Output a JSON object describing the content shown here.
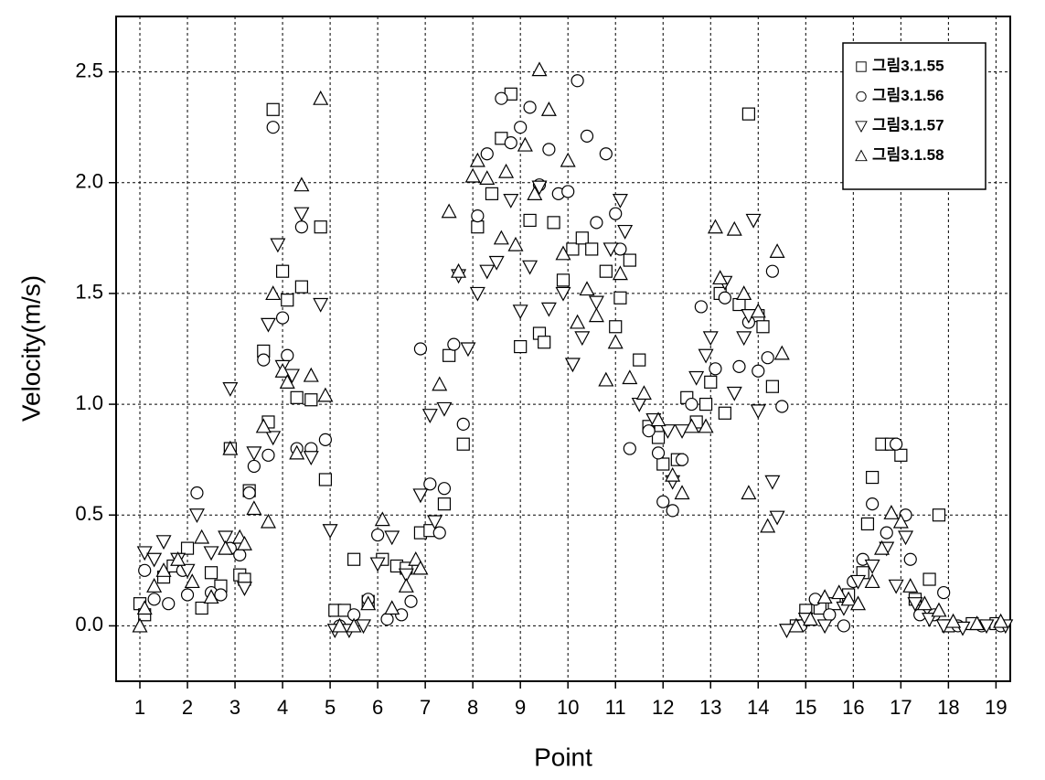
{
  "chart_data": {
    "type": "scatter",
    "x_label": "Point",
    "y_label": "Velocity(m/s)",
    "xlim": [
      0.5,
      19.3
    ],
    "ylim": [
      -0.25,
      2.75
    ],
    "xticks": [
      1,
      2,
      3,
      4,
      5,
      6,
      7,
      8,
      9,
      10,
      11,
      12,
      13,
      14,
      15,
      16,
      17,
      18,
      19
    ],
    "yticks": [
      {
        "value": 0,
        "label": "0.0"
      },
      0.5,
      {
        "value": 1,
        "label": "1.0"
      },
      1.5,
      {
        "value": 2,
        "label": "2.0"
      },
      2.5
    ],
    "grid": true,
    "legend": "upper right",
    "series": [
      {
        "name": "그림3.1.55",
        "marker": "square",
        "color": "#000000",
        "x": [
          1.0,
          1.1,
          1.5,
          1.7,
          2.0,
          2.3,
          2.5,
          2.7,
          2.9,
          3.1,
          3.2,
          3.3,
          3.6,
          3.7,
          3.8,
          4.0,
          4.1,
          4.3,
          4.4,
          4.6,
          4.8,
          4.9,
          5.1,
          5.3,
          5.5,
          5.8,
          6.1,
          6.4,
          6.6,
          6.9,
          7.1,
          7.4,
          7.5,
          7.8,
          8.1,
          8.4,
          8.6,
          8.8,
          9.0,
          9.2,
          9.4,
          9.5,
          9.7,
          9.9,
          10.1,
          10.3,
          10.5,
          10.8,
          11.0,
          11.1,
          11.3,
          11.5,
          11.7,
          11.9,
          12.0,
          12.3,
          12.5,
          12.7,
          12.9,
          13.0,
          13.2,
          13.3,
          13.6,
          13.8,
          14.0,
          14.1,
          14.3,
          14.8,
          15.0,
          15.3,
          15.6,
          15.9,
          16.2,
          16.3,
          16.4,
          16.6,
          16.8,
          17.0,
          17.3,
          17.6,
          17.8,
          18.0,
          18.5,
          19.0
        ],
        "values": [
          0.1,
          0.05,
          0.22,
          0.27,
          0.35,
          0.08,
          0.24,
          0.18,
          0.8,
          0.23,
          0.21,
          0.61,
          1.24,
          0.92,
          2.33,
          1.6,
          1.47,
          1.03,
          1.53,
          1.02,
          1.8,
          0.66,
          0.07,
          0.07,
          0.3,
          0.11,
          0.3,
          0.27,
          0.26,
          0.42,
          0.43,
          0.55,
          1.22,
          0.82,
          1.8,
          1.95,
          2.2,
          2.4,
          1.26,
          1.83,
          1.32,
          1.28,
          1.82,
          1.56,
          1.7,
          1.75,
          1.7,
          1.6,
          1.35,
          1.48,
          1.65,
          1.2,
          0.9,
          0.85,
          0.73,
          0.75,
          1.03,
          0.92,
          1.0,
          1.1,
          1.5,
          0.96,
          1.45,
          2.31,
          1.4,
          1.35,
          1.08,
          0.0,
          0.07,
          0.08,
          0.1,
          0.14,
          0.24,
          0.46,
          0.67,
          0.82,
          0.82,
          0.77,
          0.12,
          0.21,
          0.5,
          0.0,
          0.01,
          0.01
        ]
      },
      {
        "name": "그림3.1.56",
        "marker": "circle",
        "color": "#000000",
        "x": [
          1.1,
          1.3,
          1.6,
          1.9,
          2.0,
          2.2,
          2.5,
          2.7,
          2.9,
          3.1,
          3.3,
          3.4,
          3.6,
          3.7,
          3.8,
          4.0,
          4.1,
          4.3,
          4.4,
          4.6,
          4.9,
          5.2,
          5.5,
          5.8,
          6.0,
          6.2,
          6.5,
          6.7,
          6.9,
          7.1,
          7.3,
          7.4,
          7.6,
          7.8,
          8.1,
          8.3,
          8.6,
          8.8,
          9.0,
          9.2,
          9.4,
          9.6,
          9.8,
          10.0,
          10.2,
          10.4,
          10.6,
          10.8,
          11.0,
          11.1,
          11.3,
          11.7,
          11.9,
          12.0,
          12.2,
          12.4,
          12.6,
          12.8,
          13.1,
          13.3,
          13.6,
          13.8,
          14.0,
          14.2,
          14.3,
          14.5,
          14.9,
          15.2,
          15.5,
          15.8,
          16.0,
          16.2,
          16.4,
          16.7,
          16.9,
          17.1,
          17.2,
          17.4,
          17.7,
          17.9,
          18.2,
          18.7,
          19.1
        ],
        "values": [
          0.25,
          0.12,
          0.1,
          0.25,
          0.14,
          0.6,
          0.15,
          0.14,
          0.35,
          0.32,
          0.6,
          0.72,
          1.2,
          0.77,
          2.25,
          1.39,
          1.22,
          0.8,
          1.8,
          0.8,
          0.84,
          0.0,
          0.05,
          0.12,
          0.41,
          0.03,
          0.05,
          0.11,
          1.25,
          0.64,
          0.42,
          0.62,
          1.27,
          0.91,
          1.85,
          2.13,
          2.38,
          2.18,
          2.25,
          2.34,
          1.99,
          2.15,
          1.95,
          1.96,
          2.46,
          2.21,
          1.82,
          2.13,
          1.86,
          1.7,
          0.8,
          0.88,
          0.78,
          0.56,
          0.52,
          0.75,
          1.0,
          1.44,
          1.16,
          1.48,
          1.17,
          1.37,
          1.15,
          1.21,
          1.6,
          0.99,
          0.0,
          0.12,
          0.05,
          0.0,
          0.2,
          0.3,
          0.55,
          0.42,
          0.82,
          0.5,
          0.3,
          0.05,
          0.05,
          0.15,
          0.0,
          0.0,
          0.0
        ]
      },
      {
        "name": "그림3.1.57",
        "marker": "triangle-down",
        "color": "#000000",
        "x": [
          1.1,
          1.3,
          1.5,
          1.8,
          2.0,
          2.2,
          2.5,
          2.8,
          2.9,
          3.2,
          3.4,
          3.7,
          3.8,
          3.9,
          4.0,
          4.2,
          4.4,
          4.6,
          4.8,
          5.0,
          5.1,
          5.4,
          5.7,
          6.0,
          6.3,
          6.6,
          6.9,
          7.1,
          7.2,
          7.4,
          7.7,
          7.9,
          8.1,
          8.3,
          8.5,
          8.8,
          9.0,
          9.2,
          9.4,
          9.6,
          9.9,
          10.1,
          10.3,
          10.6,
          10.9,
          11.1,
          11.2,
          11.5,
          11.8,
          12.1,
          12.2,
          12.4,
          12.7,
          12.9,
          13.0,
          13.3,
          13.5,
          13.7,
          13.8,
          13.9,
          14.0,
          14.3,
          14.4,
          14.6,
          15.0,
          15.4,
          15.8,
          16.1,
          16.4,
          16.7,
          16.9,
          17.1,
          17.3,
          17.6,
          17.9,
          18.3,
          18.8,
          19.2
        ],
        "values": [
          0.33,
          0.3,
          0.38,
          0.3,
          0.25,
          0.5,
          0.33,
          0.4,
          1.07,
          0.17,
          0.78,
          1.36,
          0.85,
          1.72,
          1.17,
          1.13,
          1.86,
          0.76,
          1.45,
          0.43,
          -0.02,
          -0.02,
          0.0,
          0.28,
          0.4,
          0.23,
          0.59,
          0.95,
          0.47,
          0.98,
          1.58,
          1.25,
          1.5,
          1.6,
          1.64,
          1.92,
          1.42,
          1.62,
          1.98,
          1.43,
          1.5,
          1.18,
          1.3,
          1.46,
          1.7,
          1.92,
          1.78,
          1.0,
          0.93,
          0.88,
          0.65,
          0.88,
          1.12,
          1.22,
          1.3,
          1.55,
          1.05,
          1.3,
          1.4,
          1.83,
          0.97,
          0.65,
          0.49,
          -0.02,
          0.03,
          0.0,
          0.08,
          0.2,
          0.27,
          0.35,
          0.18,
          0.4,
          0.1,
          0.03,
          0.0,
          -0.01,
          0.0,
          0.0
        ]
      },
      {
        "name": "그림3.1.58",
        "marker": "triangle-up",
        "color": "#000000",
        "x": [
          1.0,
          1.1,
          1.3,
          1.5,
          1.8,
          2.1,
          2.3,
          2.5,
          2.8,
          2.9,
          3.1,
          3.2,
          3.4,
          3.6,
          3.7,
          3.8,
          4.0,
          4.1,
          4.3,
          4.4,
          4.6,
          4.8,
          4.9,
          5.2,
          5.5,
          5.8,
          6.1,
          6.3,
          6.6,
          6.8,
          6.9,
          7.3,
          7.5,
          7.7,
          8.0,
          8.1,
          8.3,
          8.6,
          8.7,
          8.9,
          9.1,
          9.3,
          9.4,
          9.6,
          9.9,
          10.0,
          10.2,
          10.4,
          10.6,
          10.8,
          11.0,
          11.1,
          11.3,
          11.6,
          11.9,
          12.2,
          12.4,
          12.6,
          12.9,
          13.1,
          13.2,
          13.5,
          13.7,
          13.8,
          14.0,
          14.2,
          14.4,
          14.5,
          14.8,
          15.1,
          15.4,
          15.7,
          15.9,
          16.1,
          16.4,
          16.6,
          16.8,
          17.0,
          17.2,
          17.5,
          17.8,
          18.1,
          18.6,
          19.1
        ],
        "values": [
          0.0,
          0.08,
          0.18,
          0.25,
          0.3,
          0.2,
          0.4,
          0.13,
          0.35,
          0.8,
          0.4,
          0.37,
          0.53,
          0.9,
          0.47,
          1.5,
          1.15,
          1.1,
          0.78,
          1.99,
          1.13,
          2.38,
          1.04,
          0.0,
          0.0,
          0.1,
          0.48,
          0.08,
          0.18,
          0.3,
          0.26,
          1.09,
          1.87,
          1.6,
          2.03,
          2.1,
          2.02,
          1.75,
          2.05,
          1.72,
          2.17,
          1.95,
          2.51,
          2.33,
          1.68,
          2.1,
          1.37,
          1.52,
          1.4,
          1.11,
          1.28,
          1.59,
          1.12,
          1.05,
          0.93,
          0.68,
          0.6,
          0.9,
          0.9,
          1.8,
          1.57,
          1.79,
          1.5,
          0.6,
          1.42,
          0.45,
          1.69,
          1.23,
          0.0,
          0.03,
          0.13,
          0.15,
          0.12,
          0.1,
          0.2,
          0.35,
          0.51,
          0.47,
          0.18,
          0.1,
          0.07,
          0.02,
          0.01,
          0.02
        ]
      }
    ]
  }
}
